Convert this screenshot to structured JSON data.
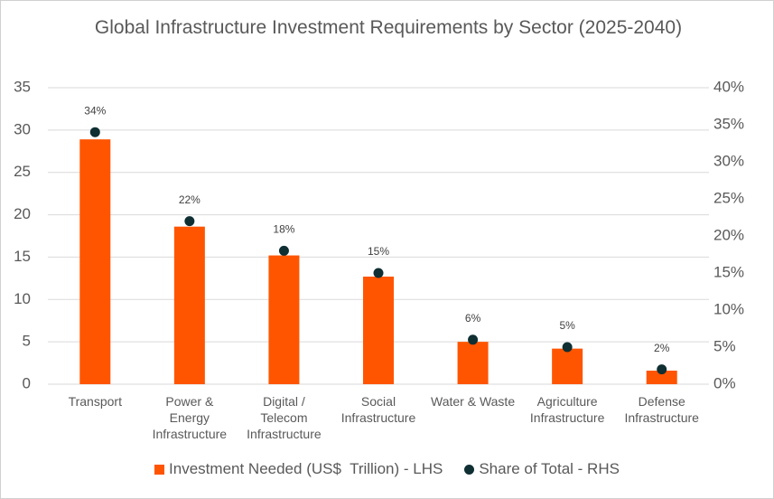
{
  "chart_data": {
    "type": "bar_scatter",
    "title": "Global Infrastructure Investment Requirements by Sector (2025-2040)",
    "categories": [
      "Transport",
      "Power & Energy Infrastructure",
      "Digital / Telecom Infrastructure",
      "Social Infrastructure",
      "Water & Waste",
      "Agriculture Infrastructure",
      "Defense Infrastructure"
    ],
    "series": [
      {
        "name": "Investment Needed (US$  Trillion) - LHS",
        "type": "bar",
        "color": "#ff5500",
        "axis": "y",
        "values": [
          28.9,
          18.6,
          15.2,
          12.7,
          5.0,
          4.2,
          1.6
        ]
      },
      {
        "name": "Share of Total - RHS",
        "type": "scatter",
        "color": "#0f2f33",
        "axis": "y2",
        "values": [
          34,
          22,
          18,
          15,
          6,
          5,
          2
        ],
        "value_labels": [
          "34%",
          "22%",
          "18%",
          "15%",
          "6%",
          "5%",
          "2%"
        ]
      }
    ],
    "ylim": [
      0,
      35
    ],
    "yticks": [
      0,
      5,
      10,
      15,
      20,
      25,
      30,
      35
    ],
    "y2lim": [
      0,
      40
    ],
    "y2ticks": [
      {
        "value": 0,
        "label": "0%"
      },
      {
        "value": 5,
        "label": "5%"
      },
      {
        "value": 10,
        "label": "10%"
      },
      {
        "value": 15,
        "label": "15%"
      },
      {
        "value": 20,
        "label": "20%"
      },
      {
        "value": 25,
        "label": "25%"
      },
      {
        "value": 30,
        "label": "30%"
      },
      {
        "value": 35,
        "label": "35%"
      },
      {
        "value": 40,
        "label": "40%"
      }
    ],
    "grid": true,
    "legend": "bottom"
  }
}
